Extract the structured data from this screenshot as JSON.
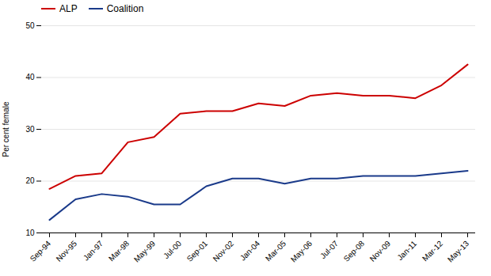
{
  "chart_data": {
    "type": "line",
    "categories": [
      "Sep-94",
      "Nov-95",
      "Jan-97",
      "Mar-98",
      "May-99",
      "Jul-00",
      "Sep-01",
      "Nov-02",
      "Jan-04",
      "Mar-05",
      "May-06",
      "Jul-07",
      "Sep-08",
      "Nov-09",
      "Jan-11",
      "Mar-12",
      "May-13"
    ],
    "series": [
      {
        "name": "ALP",
        "color": "#cc0000",
        "values": [
          18.5,
          21.0,
          21.5,
          27.5,
          28.5,
          33.0,
          33.5,
          33.5,
          35.0,
          34.5,
          36.5,
          37.0,
          36.5,
          36.5,
          36.0,
          38.5,
          42.5
        ]
      },
      {
        "name": "Coalition",
        "color": "#1a3a8a",
        "values": [
          12.5,
          16.5,
          17.5,
          17.0,
          15.5,
          15.5,
          19.0,
          20.5,
          20.5,
          19.5,
          20.5,
          20.5,
          21.0,
          21.0,
          21.0,
          21.5,
          22.0
        ]
      }
    ],
    "ylabel": "Per cent female",
    "ylim": [
      10,
      50
    ],
    "yticks": [
      10,
      20,
      30,
      40,
      50
    ],
    "grid": true,
    "legend": "upper left"
  }
}
